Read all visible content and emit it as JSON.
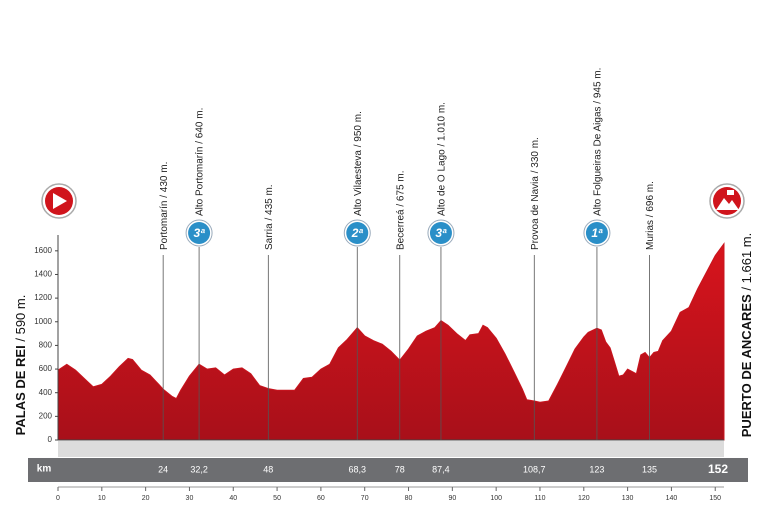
{
  "chart_data": {
    "type": "area",
    "color": "#c8141e",
    "start": {
      "name": "PALAS DE REI",
      "detail": "/ 590 m."
    },
    "finish": {
      "name": "PUERTO DE ANCARES",
      "detail": "/ 1.661 m."
    },
    "x_unit": "km",
    "x": [
      0,
      2,
      4,
      6,
      8,
      10,
      12,
      14,
      16,
      17,
      19,
      21,
      23,
      24,
      26,
      27,
      28,
      30,
      32.2,
      34,
      36,
      38,
      40,
      42,
      44,
      46,
      48,
      50,
      54,
      56,
      58,
      60,
      62,
      64,
      66,
      68.3,
      70,
      72,
      74,
      76,
      78,
      80,
      82,
      84,
      86,
      87.4,
      89,
      91,
      93,
      94,
      96,
      97,
      98,
      100,
      102,
      104,
      106,
      107,
      108.7,
      110,
      112,
      114,
      116,
      118,
      120,
      121,
      123,
      124,
      125,
      126,
      127,
      128,
      129,
      130,
      131,
      132,
      133,
      134,
      135,
      136,
      137,
      138,
      140,
      142,
      144,
      146,
      148,
      150,
      152
    ],
    "values": [
      590,
      640,
      590,
      520,
      450,
      470,
      540,
      620,
      690,
      680,
      590,
      550,
      470,
      430,
      370,
      350,
      420,
      540,
      640,
      600,
      610,
      550,
      600,
      610,
      560,
      460,
      435,
      420,
      420,
      520,
      530,
      600,
      640,
      780,
      850,
      950,
      880,
      840,
      810,
      750,
      675,
      770,
      880,
      920,
      950,
      1010,
      970,
      900,
      840,
      890,
      900,
      970,
      950,
      860,
      730,
      580,
      430,
      340,
      330,
      320,
      330,
      470,
      620,
      770,
      870,
      910,
      945,
      930,
      830,
      780,
      660,
      540,
      550,
      600,
      580,
      560,
      720,
      740,
      696,
      740,
      750,
      840,
      920,
      1080,
      1120,
      1280,
      1420,
      1560,
      1661
    ],
    "waypoints": [
      {
        "x": 24,
        "x_label": "24",
        "label": "Portomarín / 430 m."
      },
      {
        "x": 32.2,
        "x_label": "32,2",
        "label": "Alto Portomarín / 640 m.",
        "category": "3ª"
      },
      {
        "x": 48,
        "x_label": "48",
        "label": "Sarria / 435 m."
      },
      {
        "x": 68.3,
        "x_label": "68,3",
        "label": "Alto Vilaesteva / 950 m.",
        "category": "2ª"
      },
      {
        "x": 78,
        "x_label": "78",
        "label": "Becerreá / 675 m."
      },
      {
        "x": 87.4,
        "x_label": "87,4",
        "label": "Alto de O Lago / 1.010 m.",
        "category": "3ª"
      },
      {
        "x": 108.7,
        "x_label": "108,7",
        "label": "Provoa de Navia / 330 m."
      },
      {
        "x": 123,
        "x_label": "123",
        "label": "Alto Folgueiras De Aigas / 945 m.",
        "category": "1ª"
      },
      {
        "x": 135,
        "x_label": "135",
        "label": "Murias / 696 m."
      },
      {
        "x": 152,
        "x_label": "152"
      }
    ],
    "xlim": [
      0,
      152
    ],
    "xticks": [
      0,
      10,
      20,
      30,
      40,
      50,
      60,
      70,
      80,
      90,
      100,
      110,
      120,
      130,
      140,
      150
    ],
    "ylim": [
      0,
      1700
    ],
    "yticks": [
      0,
      200,
      400,
      600,
      800,
      1000,
      1200,
      1400,
      1600
    ]
  }
}
